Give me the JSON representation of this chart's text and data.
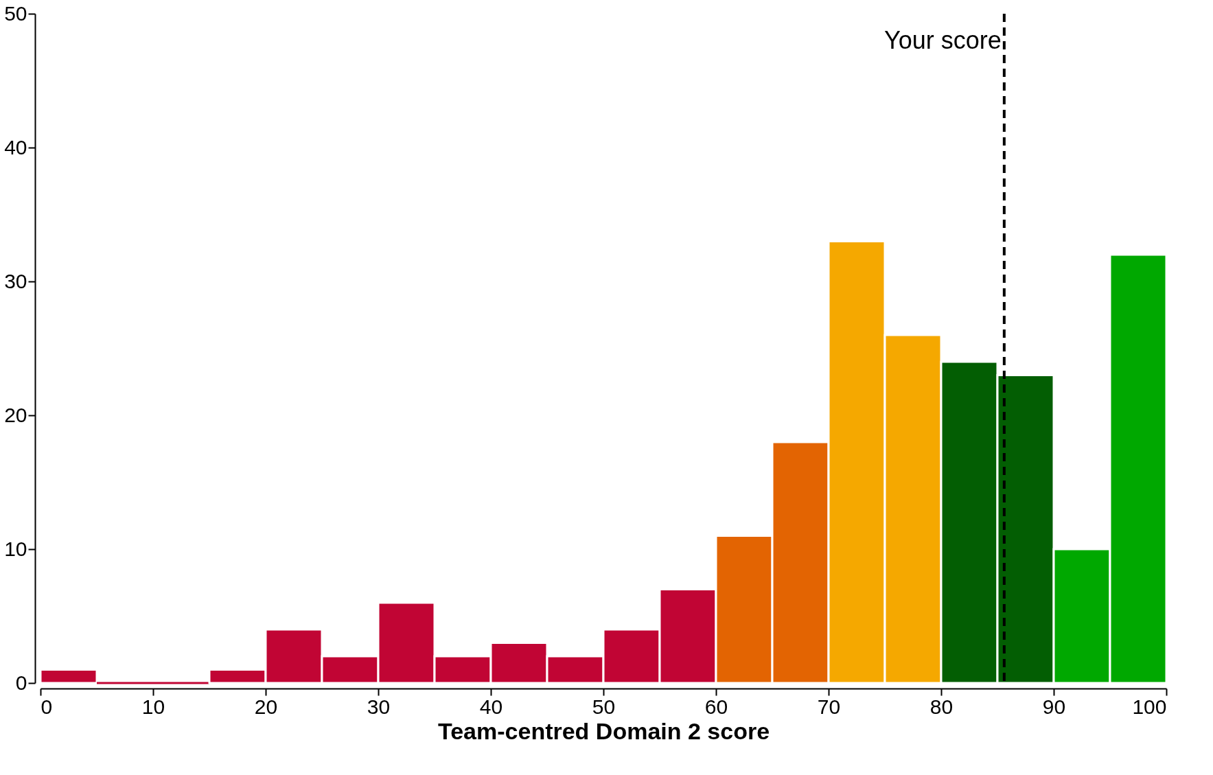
{
  "chart_data": {
    "type": "histogram",
    "xlabel": "Team-centred Domain 2 score",
    "bins": [
      0,
      5,
      10,
      15,
      20,
      25,
      30,
      35,
      40,
      45,
      50,
      55,
      60,
      65,
      70,
      75,
      80,
      85,
      90,
      95,
      100
    ],
    "values": [
      1,
      0,
      0,
      1,
      4,
      2,
      6,
      2,
      3,
      2,
      4,
      7,
      11,
      18,
      33,
      26,
      24,
      23,
      10,
      32
    ],
    "colors": [
      "#c10534",
      "#c10534",
      "#c10534",
      "#c10534",
      "#c10534",
      "#c10534",
      "#c10534",
      "#c10534",
      "#c10534",
      "#c10534",
      "#c10534",
      "#c10534",
      "#e36402",
      "#e36402",
      "#f5a800",
      "#f5a800",
      "#035e03",
      "#035e03",
      "#00a800",
      "#00a800"
    ],
    "xlim": [
      0,
      100
    ],
    "xticks": [
      0,
      10,
      20,
      30,
      40,
      50,
      60,
      70,
      80,
      90,
      100
    ],
    "ylim": [
      0,
      50
    ],
    "yticks": [
      0,
      10,
      20,
      30,
      40,
      50
    ],
    "grid": false,
    "ref_lines": [
      {
        "axis": "x",
        "value": 85.6,
        "label": "Your score",
        "line_style": "dashed",
        "color": "#000000"
      }
    ]
  }
}
